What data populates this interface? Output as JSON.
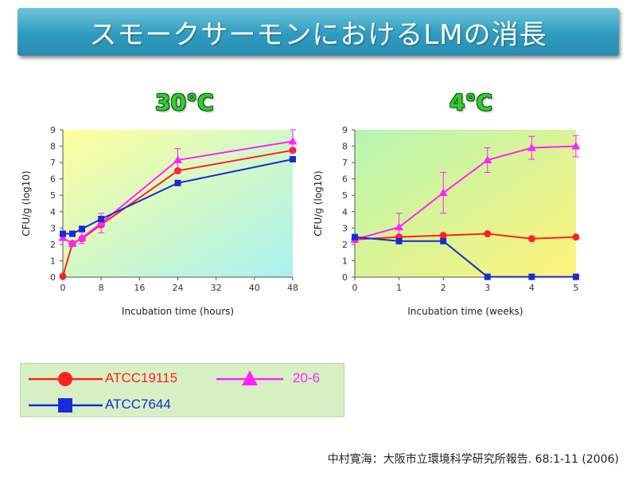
{
  "title": "スモークサーモンにおけるLMの消長",
  "citation": "中村寛海：大阪市立環境科学研究所報告. 68:1-11 (2006)",
  "colors": {
    "ATCC19115": "#ff2020",
    "20-6": "#ff22ff",
    "ATCC7644": "#1a2ad8"
  },
  "legend": {
    "items": [
      {
        "name": "ATCC19115",
        "marker": "circle"
      },
      {
        "name": "20-6",
        "marker": "triangle"
      },
      {
        "name": "ATCC7644",
        "marker": "square"
      }
    ]
  },
  "chart_data": [
    {
      "type": "line",
      "title": "30°C",
      "xlabel": "Incubation time (hours)",
      "ylabel": "CFU/g (log10)",
      "xlim": [
        0,
        48
      ],
      "ylim": [
        0,
        9
      ],
      "xticks": [
        "0",
        "8",
        "16",
        "24",
        "32",
        "40",
        "48"
      ],
      "xtick_values": [
        0,
        8,
        16,
        24,
        32,
        40,
        48
      ],
      "yticks": [
        "0",
        "1",
        "2",
        "3",
        "4",
        "5",
        "6",
        "7",
        "8",
        "9"
      ],
      "background": "yellow-to-cyan",
      "series": [
        {
          "name": "ATCC19115",
          "marker": "circle",
          "x": [
            0,
            2,
            4,
            8,
            24,
            48
          ],
          "y": [
            0.05,
            2.05,
            2.35,
            3.2,
            6.5,
            7.75
          ],
          "err": [
            0,
            0,
            0,
            0,
            0,
            0
          ]
        },
        {
          "name": "20-6",
          "marker": "triangle",
          "x": [
            0,
            2,
            4,
            8,
            24,
            48
          ],
          "y": [
            2.4,
            2.05,
            2.4,
            3.3,
            7.15,
            8.3
          ],
          "err": [
            0,
            0,
            0.35,
            0.6,
            0.7,
            0.7
          ]
        },
        {
          "name": "ATCC7644",
          "marker": "square",
          "x": [
            0,
            2,
            4,
            8,
            24,
            48
          ],
          "y": [
            2.65,
            2.65,
            2.95,
            3.55,
            5.75,
            7.2
          ],
          "err": [
            0,
            0,
            0,
            0,
            0,
            0
          ]
        }
      ]
    },
    {
      "type": "line",
      "title": "4°C",
      "xlabel": "Incubation time (weeks)",
      "ylabel": "CFU/g (log10)",
      "xlim": [
        0,
        5
      ],
      "ylim": [
        0,
        9
      ],
      "xticks": [
        "0",
        "1",
        "2",
        "3",
        "4",
        "5"
      ],
      "xtick_values": [
        0,
        1,
        2,
        3,
        4,
        5
      ],
      "yticks": [
        "0",
        "1",
        "2",
        "3",
        "4",
        "5",
        "6",
        "7",
        "8",
        "9"
      ],
      "background": "green-to-yellow",
      "series": [
        {
          "name": "ATCC19115",
          "marker": "circle",
          "x": [
            0,
            1,
            2,
            3,
            4,
            5
          ],
          "y": [
            2.3,
            2.45,
            2.55,
            2.65,
            2.35,
            2.45
          ],
          "err": [
            0,
            0,
            0,
            0,
            0,
            0
          ]
        },
        {
          "name": "20-6",
          "marker": "triangle",
          "x": [
            0,
            1,
            2,
            3,
            4,
            5
          ],
          "y": [
            2.3,
            3.05,
            5.15,
            7.15,
            7.9,
            8.0
          ],
          "err": [
            0,
            0.85,
            1.25,
            0.75,
            0.7,
            0.65
          ]
        },
        {
          "name": "ATCC7644",
          "marker": "square",
          "x": [
            0,
            1,
            2,
            3,
            4,
            5
          ],
          "y": [
            2.45,
            2.2,
            2.2,
            0.02,
            0.02,
            0.02
          ],
          "err": [
            0,
            0,
            0,
            0,
            0,
            0
          ]
        }
      ]
    }
  ]
}
